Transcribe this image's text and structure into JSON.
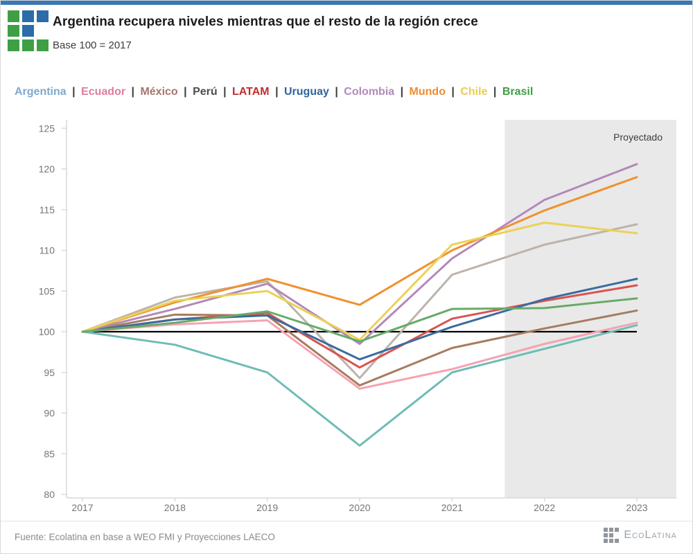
{
  "header": {
    "title": "Argentina recupera niveles mientras que el resto de la región crece",
    "subtitle": "Base 100 = 2017"
  },
  "brand_colors": {
    "topbar_blue": "#3878B5",
    "logo_blue": "#2B6CA9",
    "logo_green": "#3F9F45",
    "logo_pattern": [
      [
        "green",
        "blue",
        "blue"
      ],
      [
        "green",
        "blue",
        "none"
      ],
      [
        "green",
        "green",
        "green"
      ]
    ]
  },
  "legend": {
    "separator": "|",
    "separator_color": "#3D3D3D"
  },
  "chart_data": {
    "type": "line",
    "title": "Argentina recupera niveles mientras que el resto de la región crece",
    "subtitle": "Base 100 = 2017",
    "x": [
      2017,
      2018,
      2019,
      2020,
      2021,
      2022,
      2023
    ],
    "xlabel": "",
    "ylabel": "",
    "ylim": [
      80,
      125
    ],
    "yticks": [
      80,
      85,
      90,
      95,
      100,
      105,
      110,
      115,
      120,
      125
    ],
    "grid": false,
    "legend_position": "top",
    "axis_color": "#D9D9D9",
    "tick_label_color": "#757575",
    "baseline": {
      "value": 100,
      "color": "#000000",
      "x_start": 2017,
      "x_end": 2023
    },
    "projection": {
      "label": "Proyectado",
      "x_start": 2021.57,
      "x_end": 2023.43,
      "fill": "#E9E9E9",
      "label_color": "#3D3D3D"
    },
    "series": [
      {
        "name": "Argentina",
        "legend_color": "#7EA9CF",
        "line_color": "#6FBCB6",
        "values": [
          100,
          98.4,
          95.0,
          86.0,
          95.0,
          97.9,
          100.8
        ]
      },
      {
        "name": "Ecuador",
        "legend_color": "#DE7E9B",
        "line_color": "#F6A2B2",
        "values": [
          100,
          100.9,
          101.4,
          93.0,
          95.4,
          98.5,
          101.1
        ]
      },
      {
        "name": "México",
        "legend_color": "#A3766C",
        "line_color": "#A67C5F",
        "values": [
          100,
          102.1,
          102.0,
          93.4,
          98.0,
          100.4,
          102.6
        ]
      },
      {
        "name": "Perú",
        "legend_color": "#4D4D4D",
        "line_color": "#BCB3AA",
        "values": [
          100,
          104.2,
          106.2,
          94.3,
          107.0,
          110.7,
          113.2
        ]
      },
      {
        "name": "LATAM",
        "legend_color": "#C02E2E",
        "line_color": "#D9534E",
        "values": [
          100,
          101.5,
          102.3,
          95.6,
          101.6,
          103.8,
          105.7
        ]
      },
      {
        "name": "Uruguay",
        "legend_color": "#2F649E",
        "line_color": "#3A6B9E",
        "values": [
          100,
          101.5,
          102.0,
          96.6,
          100.6,
          104.0,
          106.5
        ]
      },
      {
        "name": "Colombia",
        "legend_color": "#B288BB",
        "line_color": "#B289B8",
        "values": [
          100,
          102.8,
          105.9,
          98.5,
          109.0,
          116.2,
          120.6
        ]
      },
      {
        "name": "Mundo",
        "legend_color": "#EF8B2D",
        "line_color": "#F0902F",
        "values": [
          100,
          103.6,
          106.5,
          103.3,
          110.0,
          114.9,
          119.0
        ]
      },
      {
        "name": "Chile",
        "legend_color": "#E9CE51",
        "line_color": "#EBD156",
        "values": [
          100,
          103.8,
          105.0,
          99.0,
          110.7,
          113.4,
          112.1
        ]
      },
      {
        "name": "Brasil",
        "legend_color": "#3C9E41",
        "line_color": "#67AB67",
        "values": [
          100,
          101.1,
          102.5,
          98.8,
          102.8,
          102.9,
          104.1
        ]
      }
    ]
  },
  "footer": {
    "source": "Fuente: Ecolatina en base a WEO FMI y Proyecciones LAECO",
    "brand_text": "EcoLatina"
  }
}
